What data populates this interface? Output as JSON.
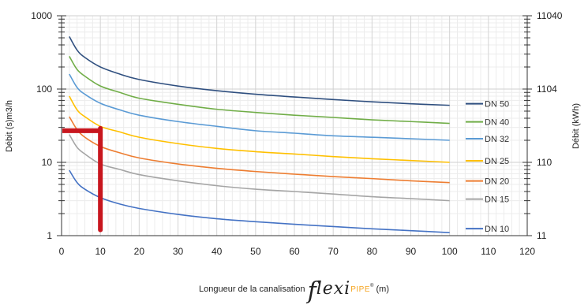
{
  "chart_data": {
    "type": "line",
    "title": "",
    "ylabel": "Débit (s)m3/h",
    "y2label": "Débit (kWh)",
    "xlabel_prefix": "Longueur de la canalisation",
    "xlabel_brand_part1": "f",
    "xlabel_brand_part2": "lexi",
    "xlabel_brand_part3": "PIPE",
    "xlabel_brand_mark": "®",
    "xlabel_suffix": "(m)",
    "xlim": [
      0,
      120
    ],
    "ylim": [
      1,
      1000
    ],
    "yscale": "log",
    "x_ticks": [
      "0",
      "10",
      "20",
      "30",
      "40",
      "50",
      "60",
      "70",
      "80",
      "90",
      "100",
      "110",
      "120"
    ],
    "y_ticks": [
      {
        "value": 1,
        "label": "1"
      },
      {
        "value": 10,
        "label": "10"
      },
      {
        "value": 100,
        "label": "100"
      },
      {
        "value": 1000,
        "label": "1000"
      }
    ],
    "y2_ticks": [
      {
        "value": 1,
        "label": "11"
      },
      {
        "value": 10,
        "label": "110"
      },
      {
        "value": 100,
        "label": "1104"
      },
      {
        "value": 1000,
        "label": "11040"
      }
    ],
    "grid": true,
    "legend_position": "right",
    "series": [
      {
        "name": "DN 50",
        "color": "#2f4f7f",
        "x": [
          2,
          4,
          6,
          10,
          15,
          20,
          30,
          40,
          50,
          60,
          70,
          80,
          90,
          100
        ],
        "y": [
          520,
          340,
          270,
          200,
          160,
          135,
          110,
          95,
          85,
          78,
          72,
          67,
          63,
          60
        ]
      },
      {
        "name": "DN 40",
        "color": "#70ad47",
        "x": [
          2,
          4,
          6,
          10,
          15,
          20,
          30,
          40,
          50,
          60,
          70,
          80,
          90,
          100
        ],
        "y": [
          280,
          185,
          150,
          110,
          90,
          75,
          62,
          53,
          48,
          44,
          41,
          38,
          36,
          34
        ]
      },
      {
        "name": "DN 32",
        "color": "#5b9bd5",
        "x": [
          2,
          4,
          6,
          10,
          15,
          20,
          30,
          40,
          50,
          60,
          70,
          80,
          90,
          100
        ],
        "y": [
          160,
          105,
          85,
          64,
          52,
          44,
          36,
          31,
          27,
          25,
          23,
          22,
          21,
          20
        ]
      },
      {
        "name": "DN 25",
        "color": "#ffc000",
        "x": [
          2,
          4,
          6,
          10,
          15,
          20,
          30,
          40,
          50,
          60,
          70,
          80,
          90,
          100
        ],
        "y": [
          80,
          52,
          42,
          31,
          26,
          22,
          18,
          15.5,
          14,
          13,
          12,
          11.2,
          10.6,
          10
        ]
      },
      {
        "name": "DN 20",
        "color": "#ed7d31",
        "x": [
          2,
          4,
          6,
          10,
          15,
          20,
          30,
          40,
          50,
          60,
          70,
          80,
          90,
          100
        ],
        "y": [
          42,
          28,
          22,
          16.5,
          13.5,
          11.5,
          9.5,
          8.3,
          7.5,
          6.9,
          6.4,
          6,
          5.6,
          5.3
        ]
      },
      {
        "name": "DN 15",
        "color": "#a5a5a5",
        "x": [
          2,
          4,
          6,
          10,
          15,
          20,
          30,
          40,
          50,
          60,
          70,
          80,
          90,
          100
        ],
        "y": [
          24,
          16,
          13,
          9.5,
          8,
          6.8,
          5.6,
          4.8,
          4.3,
          4,
          3.7,
          3.4,
          3.2,
          3
        ]
      },
      {
        "name": "DN 10",
        "color": "#4472c4",
        "x": [
          2,
          4,
          6,
          10,
          15,
          20,
          30,
          40,
          50,
          60,
          70,
          80,
          90,
          100
        ],
        "y": [
          7.8,
          5.3,
          4.3,
          3.3,
          2.7,
          2.35,
          1.95,
          1.7,
          1.55,
          1.43,
          1.33,
          1.24,
          1.17,
          1.1
        ]
      }
    ],
    "annotation": {
      "color": "#c8161e",
      "x_vertical": 10,
      "y_horizontal": 27,
      "x_start": 0,
      "y_bottom": 1.2
    }
  }
}
